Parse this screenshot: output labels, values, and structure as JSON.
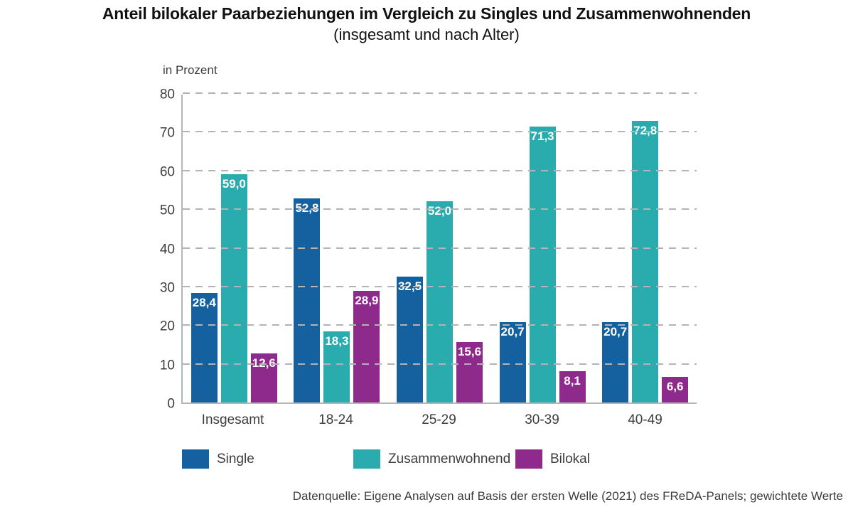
{
  "title": "Anteil bilokaler Paarbeziehungen im Vergleich zu Singles und Zusammenwohnenden",
  "subtitle": "(insgesamt und nach Alter)",
  "source": "Datenquelle: Eigene Analysen auf Basis der ersten Welle (2021) des FReDA-Panels; gewichtete Werte",
  "chart_data": {
    "type": "bar",
    "title": "Anteil bilokaler Paarbeziehungen im Vergleich zu Singles und Zusammenwohnenden (insgesamt und nach Alter)",
    "categories": [
      "Insgesamt",
      "18-24",
      "25-29",
      "30-39",
      "40-49"
    ],
    "series": [
      {
        "name": "Single",
        "color": "#15619f",
        "values": [
          28.4,
          52.8,
          32.5,
          20.7,
          20.7
        ]
      },
      {
        "name": "Zusammenwohnend",
        "color": "#2aabad",
        "values": [
          59.0,
          18.3,
          52.0,
          71.3,
          72.8
        ]
      },
      {
        "name": "Bilokal",
        "color": "#8e2a8b",
        "values": [
          12.6,
          28.9,
          15.6,
          8.1,
          6.6
        ]
      }
    ],
    "value_label_decimal_separator": ",",
    "xlabel": "",
    "ylabel": "in Prozent",
    "ylim": [
      0,
      80
    ],
    "yticks": [
      0,
      10,
      20,
      30,
      40,
      50,
      60,
      70,
      80
    ],
    "grid": true,
    "grid_style": "dashed",
    "legend_position": "bottom"
  }
}
